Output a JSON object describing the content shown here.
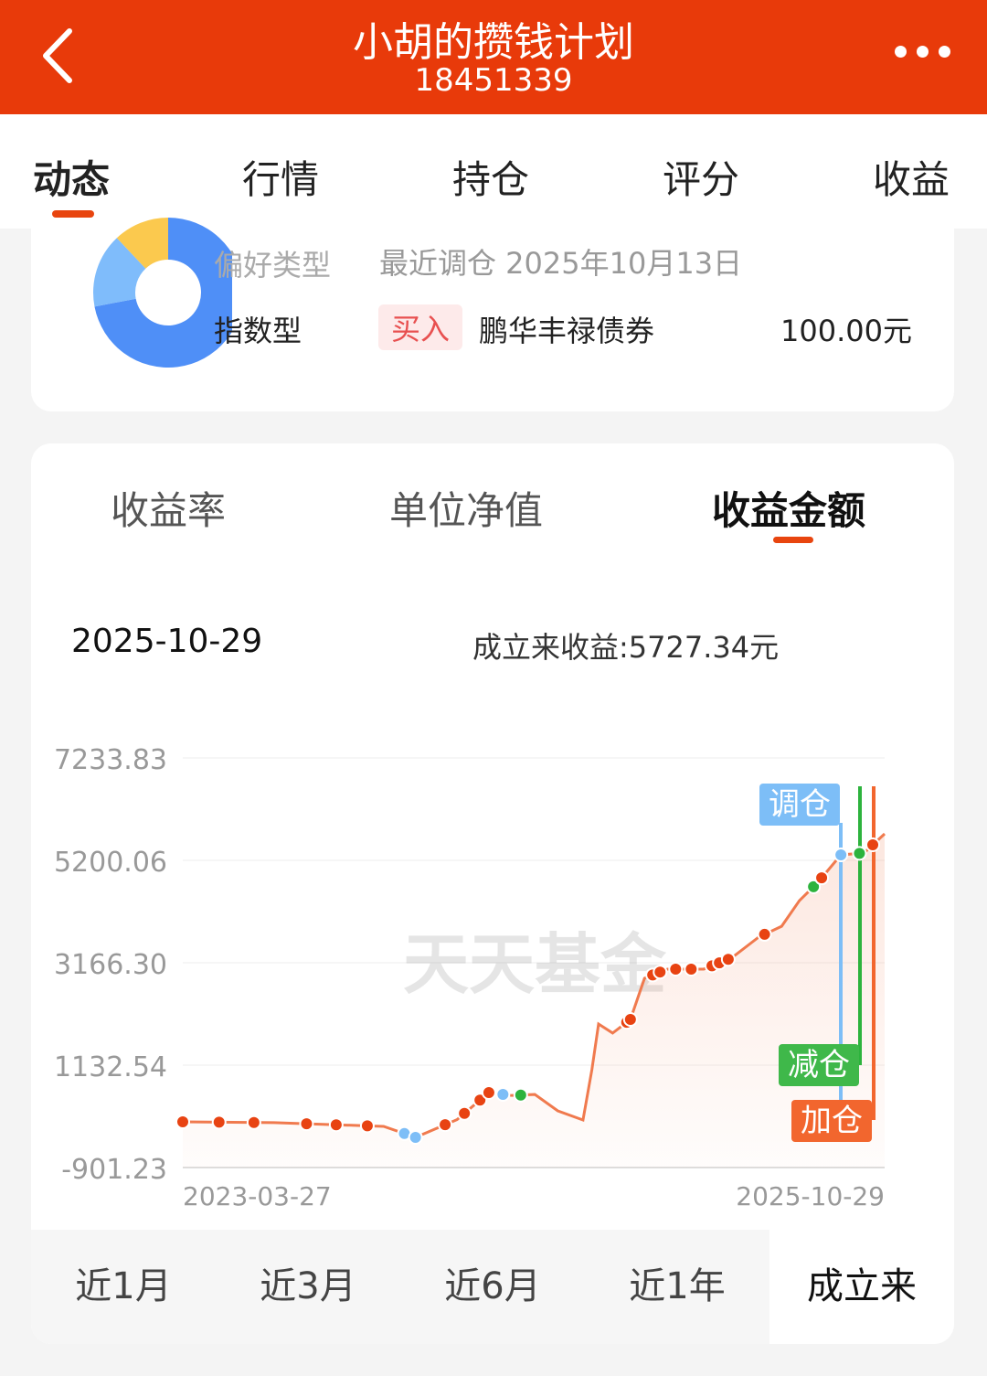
{
  "header": {
    "title": "小胡的攒钱计划",
    "subtitle": "18451339"
  },
  "tabs": [
    {
      "label": "动态",
      "active": true
    },
    {
      "label": "行情"
    },
    {
      "label": "持仓"
    },
    {
      "label": "评分"
    },
    {
      "label": "收益"
    }
  ],
  "summary": {
    "preference_label": "偏好类型",
    "preference_value": "指数型",
    "recent_label": "最近调仓 2025年10月13日",
    "action_badge": "买入",
    "fund_name": "鹏华丰禄债券",
    "amount": "100.00元",
    "donut_colors": [
      "#4f8ff7",
      "#7fbcfb",
      "#fbc94e"
    ],
    "donut_shares": [
      0.72,
      0.16,
      0.12
    ]
  },
  "chart_tabs": [
    {
      "label": "收益率"
    },
    {
      "label": "单位净值"
    },
    {
      "label": "收益金额",
      "active": true
    }
  ],
  "readout": {
    "date": "2025-10-29",
    "value": "成立来收益:5727.34元"
  },
  "watermark": "天天基金",
  "legend": {
    "adjust": "调仓",
    "sell": "减仓",
    "buy": "加仓"
  },
  "colors": {
    "accent": "#e83a0a",
    "line": "#f07a4e",
    "buy": "#e84312",
    "sell": "#2db33d",
    "adjust": "#7dbef7"
  },
  "chart_data": {
    "type": "line",
    "y_ticks": [
      "7233.83",
      "5200.06",
      "3166.30",
      "1132.54",
      "-901.23"
    ],
    "ylim": [
      -901.23,
      7233.83
    ],
    "x_ticks": [
      "2023-03-27",
      "2025-10-29"
    ],
    "xlim": [
      "2023-03-27",
      "2025-10-29"
    ],
    "grid": true,
    "points": [
      [
        "2023-03-27",
        7
      ],
      [
        "2023-07-28",
        -10
      ],
      [
        "2023-12-23",
        -84
      ],
      [
        "2024-02-04",
        -302
      ],
      [
        "2024-03-31",
        50
      ],
      [
        "2024-05-13",
        588
      ],
      [
        "2024-06-13",
        530
      ],
      [
        "2024-07-14",
        550
      ],
      [
        "2024-08-14",
        225
      ],
      [
        "2024-09-17",
        43
      ],
      [
        "2024-09-29",
        1042
      ],
      [
        "2024-10-08",
        1950
      ],
      [
        "2024-10-27",
        1770
      ],
      [
        "2024-11-20",
        2040
      ],
      [
        "2024-12-09",
        2858
      ],
      [
        "2025-01-09",
        3040
      ],
      [
        "2025-02-02",
        3040
      ],
      [
        "2025-02-27",
        3040
      ],
      [
        "2025-04-05",
        3257
      ],
      [
        "2025-05-12",
        3675
      ],
      [
        "2025-06-12",
        3890
      ],
      [
        "2025-07-06",
        4400
      ],
      [
        "2025-07-31",
        4764
      ],
      [
        "2025-08-31",
        5309
      ],
      [
        "2025-10-01",
        5345
      ],
      [
        "2025-10-29",
        5727
      ]
    ],
    "markers": [
      [
        "2023-03-27",
        "buy"
      ],
      [
        "2023-05-15",
        "buy"
      ],
      [
        "2023-07-01",
        "buy"
      ],
      [
        "2023-09-10",
        "buy"
      ],
      [
        "2023-10-20",
        "buy"
      ],
      [
        "2023-12-01",
        "buy"
      ],
      [
        "2024-01-20",
        "adjust"
      ],
      [
        "2024-02-04",
        "adjust"
      ],
      [
        "2024-03-15",
        "buy"
      ],
      [
        "2024-04-10",
        "buy"
      ],
      [
        "2024-05-01",
        "buy"
      ],
      [
        "2024-05-13",
        "buy"
      ],
      [
        "2024-06-01",
        "adjust"
      ],
      [
        "2024-06-25",
        "sell"
      ],
      [
        "2024-11-15",
        "buy"
      ],
      [
        "2024-11-20",
        "buy"
      ],
      [
        "2024-12-20",
        "buy"
      ],
      [
        "2024-12-30",
        "buy"
      ],
      [
        "2025-01-20",
        "buy"
      ],
      [
        "2025-02-10",
        "buy"
      ],
      [
        "2025-03-10",
        "buy"
      ],
      [
        "2025-03-20",
        "buy"
      ],
      [
        "2025-04-01",
        "buy"
      ],
      [
        "2025-05-20",
        "buy"
      ],
      [
        "2025-07-25",
        "sell"
      ],
      [
        "2025-08-05",
        "buy"
      ],
      [
        "2025-08-31",
        "adjust"
      ],
      [
        "2025-09-25",
        "sell"
      ],
      [
        "2025-10-13",
        "buy"
      ]
    ]
  },
  "periods": [
    {
      "label": "近1月"
    },
    {
      "label": "近3月"
    },
    {
      "label": "近6月"
    },
    {
      "label": "近1年"
    },
    {
      "label": "成立来",
      "active": true
    }
  ]
}
